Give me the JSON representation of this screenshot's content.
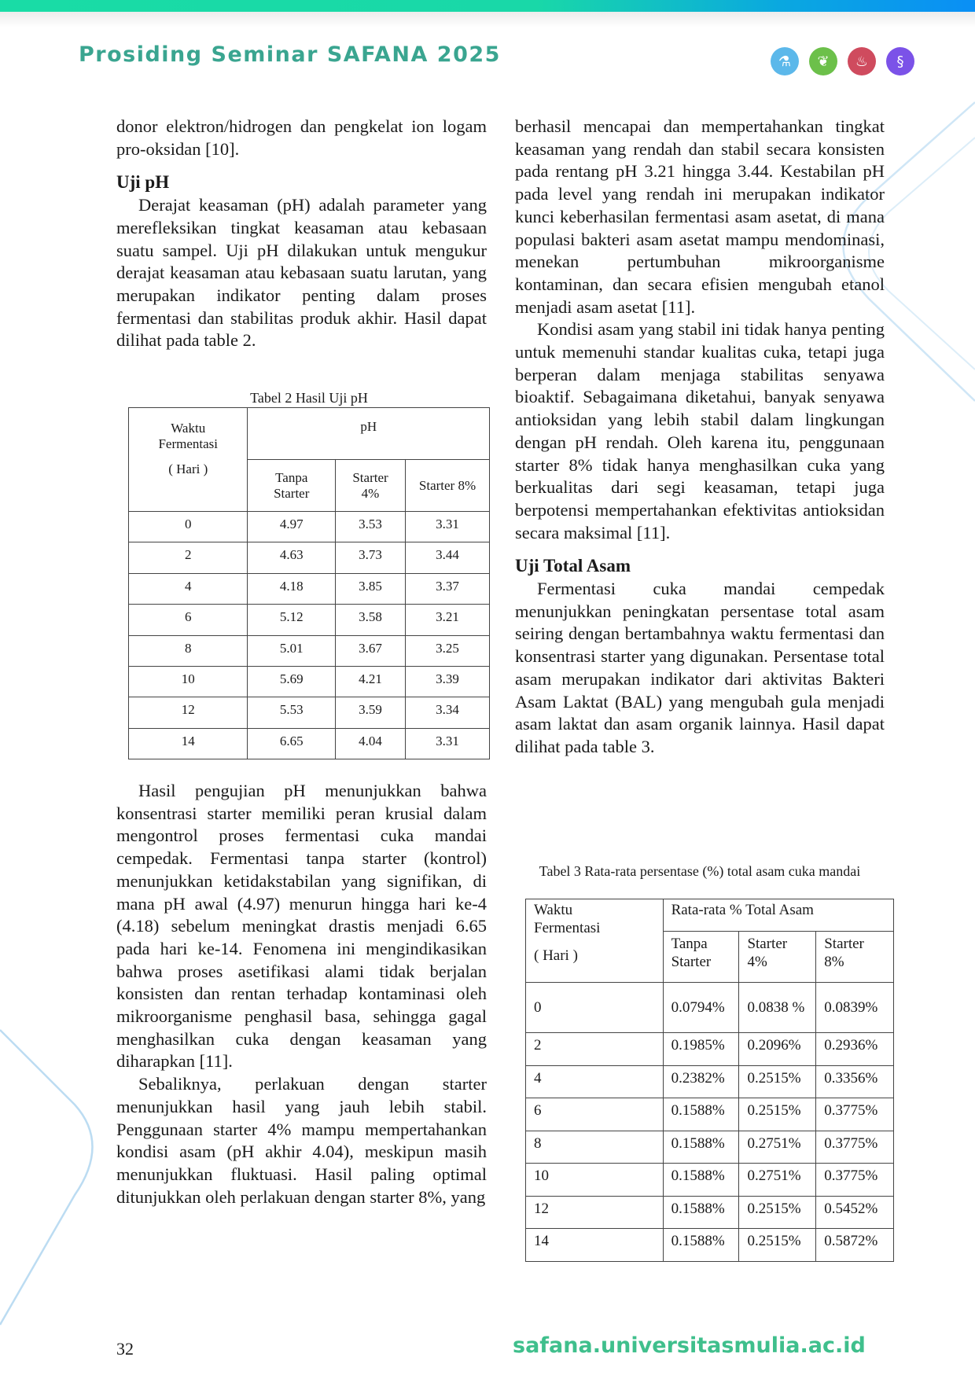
{
  "header": {
    "title": "Prosiding Seminar SAFANA 2025",
    "icons": [
      {
        "name": "microscope-icon",
        "color": "#5cb8ea"
      },
      {
        "name": "plant-icon",
        "color": "#6cc04a"
      },
      {
        "name": "flask-icon",
        "color": "#cf4b5e"
      },
      {
        "name": "dna-icon",
        "color": "#7b52e8"
      }
    ]
  },
  "left": {
    "p1": "donor elektron/hidrogen dan pengkelat ion logam pro-oksidan [10].",
    "h1": "Uji pH",
    "p2": "Derajat keasaman (pH) adalah parameter yang merefleksikan tingkat keasaman atau kebasaan suatu sampel. Uji pH dilakukan untuk mengukur derajat keasaman atau kebasaan suatu larutan, yang merupakan indikator penting dalam proses fermentasi dan stabilitas produk akhir. Hasil dapat dilihat pada table 2.",
    "p3": "Hasil pengujian pH menunjukkan bahwa konsentrasi starter memiliki peran krusial dalam mengontrol proses fermentasi cuka mandai cempedak. Fermentasi tanpa starter (kontrol) menunjukkan ketidakstabilan yang signifikan, di mana pH awal (4.97) menurun hingga hari ke-4 (4.18) sebelum meningkat drastis menjadi 6.65 pada hari ke-14. Fenomena ini mengindikasikan bahwa proses asetifikasi alami tidak berjalan konsisten dan rentan terhadap kontaminasi oleh mikroorganisme penghasil basa, sehingga gagal menghasilkan cuka dengan keasaman yang diharapkan [11].",
    "p4": "Sebaliknya, perlakuan dengan starter menunjukkan hasil yang jauh lebih stabil. Penggunaan starter 4% mampu mempertahankan kondisi asam (pH akhir 4.04), meskipun masih menunjukkan fluktuasi. Hasil paling optimal ditunjukkan oleh perlakuan dengan starter 8%, yang"
  },
  "right": {
    "p1": "berhasil mencapai dan mempertahankan tingkat keasaman yang rendah dan stabil secara konsisten pada rentang pH 3.21 hingga 3.44. Kestabilan pH pada level yang rendah ini merupakan indikator kunci keberhasilan fermentasi asam asetat, di mana populasi bakteri asam asetat mampu mendominasi, menekan pertumbuhan mikroorganisme kontaminan, dan secara efisien mengubah etanol menjadi asam asetat [11].",
    "p2": "Kondisi asam yang stabil ini tidak hanya penting untuk memenuhi standar kualitas cuka, tetapi juga berperan dalam menjaga stabilitas senyawa bioaktif. Sebagaimana diketahui, banyak senyawa antioksidan yang lebih stabil dalam lingkungan dengan pH rendah. Oleh karena itu, penggunaan starter 8% tidak hanya menghasilkan cuka yang berkualitas dari segi keasaman, tetapi juga berpotensi mempertahankan efektivitas antioksidan secara maksimal [11].",
    "h1": "Uji Total Asam",
    "p3": "Fermentasi cuka mandai cempedak menunjukkan peningkatan persentase total asam seiring dengan bertambahnya waktu fermentasi dan konsentrasi starter yang digunakan. Persentase total asam merupakan indikator dari aktivitas Bakteri Asam Laktat (BAL) yang mengubah gula menjadi asam laktat dan asam organik lainnya. Hasil dapat dilihat pada table 3."
  },
  "table2": {
    "caption": "Tabel 2 Hasil Uji pH",
    "col0": [
      "Waktu",
      "Fermentasi",
      "( Hari )"
    ],
    "group": "pH",
    "cols": [
      [
        "Tanpa",
        "Starter"
      ],
      [
        "Starter",
        "4%"
      ],
      [
        "Starter 8%"
      ]
    ],
    "rows": [
      [
        "0",
        "4.97",
        "3.53",
        "3.31"
      ],
      [
        "2",
        "4.63",
        "3.73",
        "3.44"
      ],
      [
        "4",
        "4.18",
        "3.85",
        "3.37"
      ],
      [
        "6",
        "5.12",
        "3.58",
        "3.21"
      ],
      [
        "8",
        "5.01",
        "3.67",
        "3.25"
      ],
      [
        "10",
        "5.69",
        "4.21",
        "3.39"
      ],
      [
        "12",
        "5.53",
        "3.59",
        "3.34"
      ],
      [
        "14",
        "6.65",
        "4.04",
        "3.31"
      ]
    ]
  },
  "table3": {
    "caption": "Tabel 3 Rata-rata persentase (%) total asam cuka mandai",
    "col0": [
      "Waktu",
      "Fermentasi",
      "( Hari )"
    ],
    "group": "Rata-rata % Total Asam",
    "cols": [
      [
        "Tanpa",
        "Starter"
      ],
      [
        "Starter",
        "4%"
      ],
      [
        "Starter",
        "8%"
      ]
    ],
    "rows": [
      [
        "0",
        "0.0794%",
        "0.0838 %",
        "0.0839%"
      ],
      [
        "2",
        "0.1985%",
        "0.2096%",
        "0.2936%"
      ],
      [
        "4",
        "0.2382%",
        "0.2515%",
        "0.3356%"
      ],
      [
        "6",
        "0.1588%",
        "0.2515%",
        "0.3775%"
      ],
      [
        "8",
        "0.1588%",
        "0.2751%",
        "0.3775%"
      ],
      [
        "10",
        "0.1588%",
        "0.2751%",
        "0.3775%"
      ],
      [
        "12",
        "0.1588%",
        "0.2515%",
        "0.5452%"
      ],
      [
        "14",
        "0.1588%",
        "0.2515%",
        "0.5872%"
      ]
    ]
  },
  "footer": {
    "page": "32",
    "url": "safana.universitasmulia.ac.id"
  }
}
